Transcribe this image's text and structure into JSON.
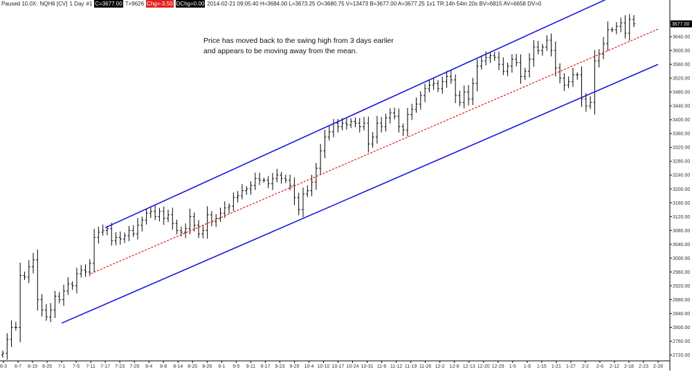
{
  "status": {
    "state": "Paused 10.0X:",
    "symbol": "NQH6 [CV]",
    "interval": "1 Day",
    "number": "#1",
    "close": "C=3677.00",
    "ticks": "T=9626",
    "change": "Chg=-3.50",
    "dchange": "DChg=0.00",
    "details": "2014-02-21 09:05:40 H=3684.00 L=3673.25 O=3680.75 V=13473 B=3677.00 A=3677.25 1x1 TR:14h 54m 20s BV=6815 AV=6658 DV=0",
    "colors": {
      "close_bg": "#000000",
      "chg_bg": "#e02020",
      "dchg_bg": "#000000"
    }
  },
  "annotation": {
    "line1": "Price has moved back to the swing high from 3 days earlier",
    "line2": "and appears to be moving away from the mean."
  },
  "chart_data": {
    "type": "ohlc",
    "y_ticks": [
      2720,
      2760,
      2800,
      2840,
      2880,
      2920,
      2960,
      3000,
      3040,
      3080,
      3120,
      3160,
      3200,
      3240,
      3280,
      3320,
      3360,
      3400,
      3440,
      3480,
      3520,
      3560,
      3600,
      3640,
      3680
    ],
    "ylim": [
      2705,
      3722
    ],
    "x_tick_labels": [
      "6-3",
      "6-7",
      "6-19",
      "6-25",
      "7-1",
      "7-5",
      "7-11",
      "7-17",
      "7-23",
      "7-29",
      "8-4",
      "8-8",
      "8-14",
      "8-20",
      "8-26",
      "9-1",
      "9-5",
      "9-11",
      "9-17",
      "9-23",
      "9-29",
      "10-4",
      "10-10",
      "10-17",
      "10-24",
      "10-31",
      "11-6",
      "11-12",
      "11-19",
      "11-26",
      "12-2",
      "12-8",
      "12-13",
      "12-20",
      "12-29",
      "1-5",
      "1-9",
      "1-15",
      "1-21",
      "1-27",
      "2-2",
      "2-6",
      "2-12",
      "2-18",
      "2-23",
      "2-28"
    ],
    "last_price_label": "3677.00",
    "colors": {
      "bars": "#000000",
      "channel": "#1515e0",
      "mean": "#e01515",
      "grid_text": "#333333"
    },
    "grid": false,
    "bar_closes": [
      2725,
      2765,
      2800,
      2800,
      2950,
      2945,
      2975,
      2995,
      2880,
      2850,
      2830,
      2850,
      2890,
      2880,
      2905,
      2925,
      2920,
      2955,
      2965,
      2960,
      2985,
      3060,
      3075,
      3080,
      3085,
      3050,
      3060,
      3055,
      3065,
      3080,
      3070,
      3095,
      3110,
      3130,
      3135,
      3120,
      3135,
      3115,
      3125,
      3100,
      3080,
      3075,
      3085,
      3120,
      3095,
      3070,
      3080,
      3125,
      3105,
      3115,
      3130,
      3145,
      3150,
      3175,
      3180,
      3195,
      3200,
      3210,
      3230,
      3225,
      3225,
      3215,
      3230,
      3240,
      3230,
      3225,
      3210,
      3175,
      3140,
      3185,
      3195,
      3220,
      3260,
      3310,
      3350,
      3365,
      3390,
      3380,
      3390,
      3385,
      3395,
      3390,
      3380,
      3390,
      3330,
      3350,
      3390,
      3380,
      3405,
      3420,
      3410,
      3380,
      3370,
      3415,
      3430,
      3445,
      3470,
      3490,
      3500,
      3505,
      3490,
      3510,
      3525,
      3515,
      3470,
      3450,
      3480,
      3460,
      3505,
      3555,
      3570,
      3580,
      3585,
      3580,
      3560,
      3540,
      3555,
      3575,
      3565,
      3525,
      3540,
      3575,
      3610,
      3600,
      3610,
      3630,
      3600,
      3550,
      3520,
      3500,
      3510,
      3530,
      3530,
      3460,
      3440,
      3450,
      3570,
      3590,
      3620,
      3660,
      3660,
      3670,
      3680,
      3650,
      3690,
      3677
    ],
    "channel_lines": [
      {
        "name": "upper",
        "x_dates": [
          "7-17",
          "2-18"
        ],
        "y": [
          3088,
          3778
        ]
      },
      {
        "name": "lower",
        "x_dates": [
          "7-1",
          "2-28"
        ],
        "y": [
          2812,
          3560
        ]
      },
      {
        "name": "mean",
        "x_dates": [
          "7-11",
          "2-28"
        ],
        "y": [
          2955,
          3662
        ]
      }
    ]
  }
}
